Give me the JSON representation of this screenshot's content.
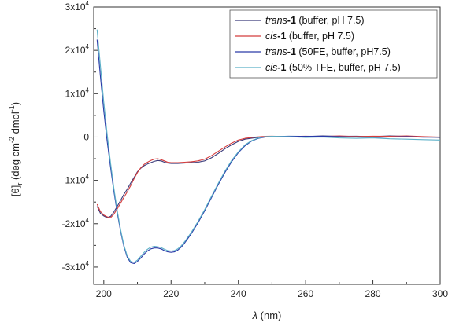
{
  "chart_data": {
    "type": "line",
    "xlabel_italic": "λ",
    "xlabel_unit": " (nm)",
    "ylabel": {
      "theta": "[θ]",
      "sub": "r",
      "unit_open": " (deg cm",
      "exp1": "-2",
      "mid": " dmol",
      "exp2": "-1",
      "close": ")"
    },
    "xlim": [
      197,
      300
    ],
    "ylim": [
      -34000,
      30000
    ],
    "x_ticks": [
      200,
      220,
      240,
      260,
      280,
      300
    ],
    "y_ticks": [
      {
        "value": 30000,
        "mant": "3x10",
        "exp": "4"
      },
      {
        "value": 20000,
        "mant": "2x10",
        "exp": "4"
      },
      {
        "value": 10000,
        "mant": "1x10",
        "exp": "4"
      },
      {
        "value": 0,
        "mant": "0",
        "exp": ""
      },
      {
        "value": -10000,
        "mant": "-1x10",
        "exp": "4"
      },
      {
        "value": -20000,
        "mant": "-2x10",
        "exp": "4"
      },
      {
        "value": -30000,
        "mant": "-3x10",
        "exp": "4"
      }
    ],
    "legend_position": "top-right",
    "series": [
      {
        "color": "#3b3b7a",
        "legend": {
          "italic": "trans",
          "bold": "-1",
          "rest": " (buffer, pH 7.5)"
        },
        "points": [
          [
            198,
            -16000
          ],
          [
            199,
            -17600
          ],
          [
            200,
            -18200
          ],
          [
            201,
            -18600
          ],
          [
            202,
            -18300
          ],
          [
            203,
            -17300
          ],
          [
            204,
            -16000
          ],
          [
            205,
            -14600
          ],
          [
            206,
            -13200
          ],
          [
            207,
            -12000
          ],
          [
            208,
            -10600
          ],
          [
            209,
            -9300
          ],
          [
            210,
            -8000
          ],
          [
            211,
            -7200
          ],
          [
            212,
            -6600
          ],
          [
            213,
            -6200
          ],
          [
            214,
            -5900
          ],
          [
            215,
            -5600
          ],
          [
            216,
            -5400
          ],
          [
            217,
            -5500
          ],
          [
            218,
            -5800
          ],
          [
            219,
            -6000
          ],
          [
            220,
            -6100
          ],
          [
            222,
            -6100
          ],
          [
            224,
            -6000
          ],
          [
            226,
            -5900
          ],
          [
            228,
            -5800
          ],
          [
            230,
            -5500
          ],
          [
            232,
            -4800
          ],
          [
            234,
            -3800
          ],
          [
            236,
            -2700
          ],
          [
            238,
            -1800
          ],
          [
            240,
            -1000
          ],
          [
            242,
            -500
          ],
          [
            245,
            -150
          ],
          [
            248,
            50
          ],
          [
            250,
            100
          ],
          [
            255,
            150
          ],
          [
            260,
            100
          ],
          [
            265,
            250
          ],
          [
            270,
            150
          ],
          [
            275,
            200
          ],
          [
            280,
            100
          ],
          [
            285,
            250
          ],
          [
            290,
            150
          ],
          [
            295,
            0
          ],
          [
            300,
            -100
          ]
        ]
      },
      {
        "color": "#d43c3c",
        "legend": {
          "italic": "cis",
          "bold": "-1",
          "rest": " (buffer, pH 7.5)"
        },
        "points": [
          [
            198,
            -15500
          ],
          [
            199,
            -17200
          ],
          [
            200,
            -18000
          ],
          [
            201,
            -18400
          ],
          [
            202,
            -18600
          ],
          [
            203,
            -17800
          ],
          [
            204,
            -16600
          ],
          [
            205,
            -15200
          ],
          [
            206,
            -13900
          ],
          [
            207,
            -12600
          ],
          [
            208,
            -11200
          ],
          [
            209,
            -9600
          ],
          [
            210,
            -8200
          ],
          [
            211,
            -7100
          ],
          [
            212,
            -6300
          ],
          [
            213,
            -5800
          ],
          [
            214,
            -5400
          ],
          [
            215,
            -5100
          ],
          [
            216,
            -5000
          ],
          [
            217,
            -5200
          ],
          [
            218,
            -5500
          ],
          [
            219,
            -5800
          ],
          [
            220,
            -5900
          ],
          [
            222,
            -5900
          ],
          [
            224,
            -5800
          ],
          [
            226,
            -5700
          ],
          [
            228,
            -5500
          ],
          [
            230,
            -5100
          ],
          [
            232,
            -4300
          ],
          [
            234,
            -3300
          ],
          [
            236,
            -2300
          ],
          [
            238,
            -1400
          ],
          [
            240,
            -700
          ],
          [
            242,
            -300
          ],
          [
            245,
            0
          ],
          [
            248,
            150
          ],
          [
            250,
            200
          ],
          [
            255,
            100
          ],
          [
            260,
            200
          ],
          [
            265,
            100
          ],
          [
            270,
            250
          ],
          [
            275,
            100
          ],
          [
            280,
            200
          ],
          [
            285,
            150
          ],
          [
            290,
            250
          ],
          [
            295,
            100
          ],
          [
            300,
            0
          ]
        ]
      },
      {
        "color": "#2a3aa8",
        "legend": {
          "italic": "trans",
          "bold": "-1",
          "rest": " (50FE, buffer, pH7.5)"
        },
        "points": [
          [
            198,
            22500
          ],
          [
            199,
            14000
          ],
          [
            200,
            6000
          ],
          [
            201,
            -1000
          ],
          [
            202,
            -7000
          ],
          [
            203,
            -12500
          ],
          [
            204,
            -17500
          ],
          [
            205,
            -21800
          ],
          [
            206,
            -25300
          ],
          [
            207,
            -27800
          ],
          [
            208,
            -29000
          ],
          [
            209,
            -29200
          ],
          [
            210,
            -28700
          ],
          [
            211,
            -27900
          ],
          [
            212,
            -27000
          ],
          [
            213,
            -26300
          ],
          [
            214,
            -25800
          ],
          [
            215,
            -25600
          ],
          [
            216,
            -25600
          ],
          [
            217,
            -25800
          ],
          [
            218,
            -26200
          ],
          [
            219,
            -26500
          ],
          [
            220,
            -26600
          ],
          [
            221,
            -26500
          ],
          [
            222,
            -26100
          ],
          [
            223,
            -25400
          ],
          [
            224,
            -24500
          ],
          [
            226,
            -22300
          ],
          [
            228,
            -19800
          ],
          [
            230,
            -17000
          ],
          [
            232,
            -14000
          ],
          [
            234,
            -11000
          ],
          [
            236,
            -8200
          ],
          [
            238,
            -5700
          ],
          [
            240,
            -3600
          ],
          [
            242,
            -2000
          ],
          [
            244,
            -900
          ],
          [
            246,
            -300
          ],
          [
            248,
            0
          ],
          [
            250,
            100
          ],
          [
            255,
            200
          ],
          [
            260,
            150
          ],
          [
            265,
            200
          ],
          [
            270,
            100
          ],
          [
            275,
            0
          ],
          [
            280,
            -100
          ],
          [
            285,
            0
          ],
          [
            290,
            100
          ],
          [
            295,
            -50
          ],
          [
            300,
            0
          ]
        ]
      },
      {
        "color": "#5bb0c8",
        "legend": {
          "italic": "cis",
          "bold": "-1",
          "rest": " (50% TFE, buffer, pH 7.5)"
        },
        "points": [
          [
            198,
            24800
          ],
          [
            199,
            16500
          ],
          [
            200,
            8000
          ],
          [
            201,
            600
          ],
          [
            202,
            -6000
          ],
          [
            203,
            -11800
          ],
          [
            204,
            -17000
          ],
          [
            205,
            -21400
          ],
          [
            206,
            -25000
          ],
          [
            207,
            -27500
          ],
          [
            208,
            -28700
          ],
          [
            209,
            -28900
          ],
          [
            210,
            -28400
          ],
          [
            211,
            -27500
          ],
          [
            212,
            -26600
          ],
          [
            213,
            -25900
          ],
          [
            214,
            -25400
          ],
          [
            215,
            -25200
          ],
          [
            216,
            -25300
          ],
          [
            217,
            -25500
          ],
          [
            218,
            -25900
          ],
          [
            219,
            -26200
          ],
          [
            220,
            -26300
          ],
          [
            221,
            -26200
          ],
          [
            222,
            -25800
          ],
          [
            223,
            -25100
          ],
          [
            224,
            -24200
          ],
          [
            226,
            -22000
          ],
          [
            228,
            -19500
          ],
          [
            230,
            -16700
          ],
          [
            232,
            -13700
          ],
          [
            234,
            -10700
          ],
          [
            236,
            -7900
          ],
          [
            238,
            -5400
          ],
          [
            240,
            -3400
          ],
          [
            242,
            -1800
          ],
          [
            244,
            -800
          ],
          [
            246,
            -200
          ],
          [
            248,
            100
          ],
          [
            250,
            150
          ],
          [
            255,
            100
          ],
          [
            260,
            -100
          ],
          [
            265,
            0
          ],
          [
            270,
            -200
          ],
          [
            275,
            -300
          ],
          [
            280,
            -200
          ],
          [
            285,
            -400
          ],
          [
            290,
            -500
          ],
          [
            295,
            -600
          ],
          [
            300,
            -700
          ]
        ]
      }
    ]
  }
}
